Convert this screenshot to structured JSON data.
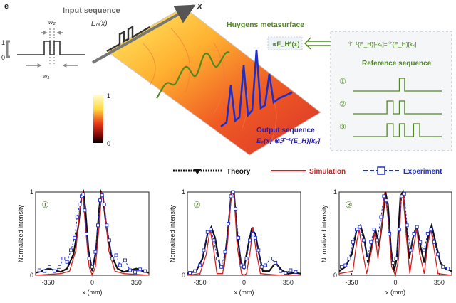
{
  "panel_label": "e",
  "top": {
    "input_sequence_label": "Input sequence",
    "e0x_label": "E₀(x)",
    "axis_x_label": "x",
    "w1_label": "w₁",
    "w2_label": "w₂",
    "level_one": "1",
    "level_zero": "0",
    "huygens_label": "Huygens metasurface",
    "formula_left": "∝E_H*(x)",
    "formula_right": "ℱ⁻¹{E_H}[-kₓ]=ℱ{E_H}[kₓ]",
    "reference_label": "Reference sequence",
    "references": [
      {
        "num": "①",
        "bars": [
          [
            0.52,
            0.58
          ]
        ]
      },
      {
        "num": "②",
        "bars": [
          [
            0.38,
            0.45
          ],
          [
            0.52,
            0.58
          ]
        ]
      },
      {
        "num": "③",
        "bars": [
          [
            0.38,
            0.45
          ],
          [
            0.52,
            0.58
          ],
          [
            0.68,
            0.75
          ]
        ]
      }
    ],
    "colorbar_max": "1",
    "colorbar_min": "0",
    "output_label": "Output sequence",
    "output_formula": "E₀(x) ⊗ℱ⁻¹{E_H}[kₓ]"
  },
  "legend": {
    "theory": "Theory",
    "simulation": "Simulation",
    "experiment": "Experiment"
  },
  "colors": {
    "theory": "#111111",
    "simulation": "#d32020",
    "experiment": "#1d2fc9",
    "green": "#4f8a1c",
    "blue_label": "#2a1fb0"
  },
  "chart_data": [
    {
      "type": "line",
      "badge": "①",
      "ylabel": "Normalized intensity",
      "xlabel": "x (mm)",
      "xlim": [
        -450,
        450
      ],
      "ylim": [
        0,
        1
      ],
      "xticks": [
        "-350",
        "0",
        "350"
      ],
      "yticks": [
        "0",
        "1"
      ],
      "series": [
        {
          "name": "Theory",
          "values": [
            [
              -450,
              0.03
            ],
            [
              -400,
              0.05
            ],
            [
              -350,
              0.08
            ],
            [
              -300,
              0.06
            ],
            [
              -250,
              0.04
            ],
            [
              -200,
              0.08
            ],
            [
              -150,
              0.25
            ],
            [
              -110,
              0.6
            ],
            [
              -85,
              0.95
            ],
            [
              -70,
              1.0
            ],
            [
              -55,
              0.8
            ],
            [
              -30,
              0.3
            ],
            [
              0,
              0.05
            ],
            [
              30,
              0.3
            ],
            [
              55,
              0.8
            ],
            [
              70,
              1.0
            ],
            [
              85,
              0.95
            ],
            [
              110,
              0.6
            ],
            [
              150,
              0.25
            ],
            [
              200,
              0.08
            ],
            [
              250,
              0.04
            ],
            [
              300,
              0.06
            ],
            [
              350,
              0.08
            ],
            [
              400,
              0.05
            ],
            [
              450,
              0.03
            ]
          ]
        },
        {
          "name": "Simulation",
          "values": [
            [
              -450,
              0.0
            ],
            [
              -350,
              0.01
            ],
            [
              -250,
              0.02
            ],
            [
              -180,
              0.05
            ],
            [
              -130,
              0.3
            ],
            [
              -95,
              0.85
            ],
            [
              -75,
              1.0
            ],
            [
              -55,
              0.6
            ],
            [
              -25,
              0.1
            ],
            [
              0,
              0.0
            ],
            [
              25,
              0.1
            ],
            [
              55,
              0.6
            ],
            [
              75,
              1.0
            ],
            [
              95,
              0.85
            ],
            [
              130,
              0.3
            ],
            [
              180,
              0.05
            ],
            [
              250,
              0.02
            ],
            [
              350,
              0.01
            ],
            [
              450,
              0.0
            ]
          ]
        },
        {
          "name": "Experiment",
          "values": [
            [
              -420,
              0.06
            ],
            [
              -380,
              0.05
            ],
            [
              -340,
              0.1
            ],
            [
              -300,
              0.05
            ],
            [
              -260,
              0.1
            ],
            [
              -230,
              0.2
            ],
            [
              -200,
              0.16
            ],
            [
              -170,
              0.3
            ],
            [
              -140,
              0.45
            ],
            [
              -120,
              0.7
            ],
            [
              -100,
              0.85
            ],
            [
              -85,
              0.95
            ],
            [
              -72,
              0.97
            ],
            [
              -60,
              0.78
            ],
            [
              -45,
              0.5
            ],
            [
              -25,
              0.2
            ],
            [
              0,
              0.1
            ],
            [
              25,
              0.28
            ],
            [
              45,
              0.6
            ],
            [
              62,
              0.9
            ],
            [
              78,
              0.96
            ],
            [
              95,
              0.85
            ],
            [
              115,
              0.6
            ],
            [
              135,
              0.42
            ],
            [
              160,
              0.2
            ],
            [
              190,
              0.24
            ],
            [
              220,
              0.12
            ],
            [
              260,
              0.18
            ],
            [
              300,
              0.06
            ],
            [
              340,
              0.04
            ],
            [
              380,
              0.07
            ],
            [
              420,
              0.05
            ]
          ]
        }
      ]
    },
    {
      "type": "line",
      "badge": "②",
      "ylabel": "Normalized intensity",
      "xlabel": "x (mm)",
      "xlim": [
        -450,
        450
      ],
      "ylim": [
        0,
        1
      ],
      "xticks": [
        "-350",
        "0",
        "350"
      ],
      "yticks": [
        "0",
        "1"
      ],
      "series": [
        {
          "name": "Theory",
          "values": [
            [
              -450,
              0.02
            ],
            [
              -380,
              0.05
            ],
            [
              -330,
              0.2
            ],
            [
              -290,
              0.5
            ],
            [
              -260,
              0.58
            ],
            [
              -230,
              0.45
            ],
            [
              -190,
              0.1
            ],
            [
              -160,
              0.1
            ],
            [
              -130,
              0.5
            ],
            [
              -100,
              1.0
            ],
            [
              -80,
              1.0
            ],
            [
              -55,
              0.5
            ],
            [
              -20,
              0.1
            ],
            [
              0,
              0.08
            ],
            [
              25,
              0.3
            ],
            [
              60,
              0.55
            ],
            [
              90,
              0.5
            ],
            [
              120,
              0.25
            ],
            [
              150,
              0.05
            ],
            [
              200,
              0.05
            ],
            [
              250,
              0.15
            ],
            [
              300,
              0.06
            ],
            [
              350,
              0.02
            ],
            [
              400,
              0.03
            ],
            [
              450,
              0.02
            ]
          ]
        },
        {
          "name": "Simulation",
          "values": [
            [
              -450,
              0.0
            ],
            [
              -350,
              0.02
            ],
            [
              -300,
              0.25
            ],
            [
              -270,
              0.55
            ],
            [
              -245,
              0.35
            ],
            [
              -215,
              0.02
            ],
            [
              -170,
              0.02
            ],
            [
              -130,
              0.4
            ],
            [
              -100,
              1.0
            ],
            [
              -80,
              1.0
            ],
            [
              -55,
              0.35
            ],
            [
              -20,
              0.02
            ],
            [
              0,
              0.0
            ],
            [
              20,
              0.02
            ],
            [
              50,
              0.3
            ],
            [
              70,
              0.58
            ],
            [
              95,
              0.3
            ],
            [
              130,
              0.02
            ],
            [
              200,
              0.01
            ],
            [
              300,
              0.0
            ],
            [
              450,
              0.0
            ]
          ]
        },
        {
          "name": "Experiment",
          "values": [
            [
              -430,
              0.03
            ],
            [
              -390,
              0.05
            ],
            [
              -350,
              0.12
            ],
            [
              -320,
              0.3
            ],
            [
              -290,
              0.52
            ],
            [
              -265,
              0.55
            ],
            [
              -240,
              0.42
            ],
            [
              -210,
              0.2
            ],
            [
              -180,
              0.1
            ],
            [
              -150,
              0.28
            ],
            [
              -125,
              0.62
            ],
            [
              -105,
              0.95
            ],
            [
              -88,
              1.0
            ],
            [
              -68,
              0.8
            ],
            [
              -45,
              0.45
            ],
            [
              -20,
              0.12
            ],
            [
              0,
              0.1
            ],
            [
              20,
              0.2
            ],
            [
              45,
              0.42
            ],
            [
              68,
              0.5
            ],
            [
              90,
              0.45
            ],
            [
              115,
              0.3
            ],
            [
              140,
              0.1
            ],
            [
              170,
              0.12
            ],
            [
              210,
              0.2
            ],
            [
              250,
              0.15
            ],
            [
              290,
              0.05
            ],
            [
              330,
              0.03
            ],
            [
              370,
              0.06
            ],
            [
              410,
              0.04
            ]
          ]
        }
      ]
    },
    {
      "type": "line",
      "badge": "③",
      "ylabel": "Normalized intensity",
      "xlabel": "x (mm)",
      "xlim": [
        -450,
        450
      ],
      "ylim": [
        0,
        1
      ],
      "xticks": [
        "-350",
        "0",
        "350"
      ],
      "yticks": [
        "0",
        "1"
      ],
      "series": [
        {
          "name": "Theory",
          "values": [
            [
              -450,
              0.05
            ],
            [
              -400,
              0.1
            ],
            [
              -350,
              0.25
            ],
            [
              -310,
              0.55
            ],
            [
              -280,
              0.6
            ],
            [
              -250,
              0.45
            ],
            [
              -220,
              0.15
            ],
            [
              -190,
              0.35
            ],
            [
              -160,
              0.55
            ],
            [
              -130,
              0.35
            ],
            [
              -100,
              0.7
            ],
            [
              -80,
              1.0
            ],
            [
              -60,
              0.85
            ],
            [
              -35,
              0.3
            ],
            [
              -10,
              0.05
            ],
            [
              10,
              0.2
            ],
            [
              40,
              0.95
            ],
            [
              60,
              1.0
            ],
            [
              85,
              0.6
            ],
            [
              110,
              0.2
            ],
            [
              140,
              0.45
            ],
            [
              170,
              0.6
            ],
            [
              200,
              0.35
            ],
            [
              230,
              0.15
            ],
            [
              260,
              0.45
            ],
            [
              290,
              0.6
            ],
            [
              320,
              0.4
            ],
            [
              360,
              0.15
            ],
            [
              400,
              0.08
            ],
            [
              450,
              0.05
            ]
          ]
        },
        {
          "name": "Simulation",
          "values": [
            [
              -450,
              0.02
            ],
            [
              -340,
              0.05
            ],
            [
              -310,
              0.4
            ],
            [
              -290,
              0.55
            ],
            [
              -265,
              0.3
            ],
            [
              -230,
              0.02
            ],
            [
              -190,
              0.3
            ],
            [
              -165,
              0.52
            ],
            [
              -140,
              0.2
            ],
            [
              -110,
              0.6
            ],
            [
              -85,
              1.0
            ],
            [
              -60,
              0.7
            ],
            [
              -30,
              0.1
            ],
            [
              0,
              0.0
            ],
            [
              25,
              0.2
            ],
            [
              45,
              0.9
            ],
            [
              62,
              1.0
            ],
            [
              85,
              0.5
            ],
            [
              115,
              0.02
            ],
            [
              145,
              0.35
            ],
            [
              170,
              0.55
            ],
            [
              195,
              0.25
            ],
            [
              230,
              0.02
            ],
            [
              260,
              0.38
            ],
            [
              285,
              0.55
            ],
            [
              310,
              0.3
            ],
            [
              340,
              0.02
            ],
            [
              450,
              0.0
            ]
          ]
        },
        {
          "name": "Experiment",
          "values": [
            [
              -430,
              0.1
            ],
            [
              -400,
              0.12
            ],
            [
              -370,
              0.2
            ],
            [
              -340,
              0.4
            ],
            [
              -310,
              0.55
            ],
            [
              -285,
              0.58
            ],
            [
              -255,
              0.42
            ],
            [
              -225,
              0.2
            ],
            [
              -195,
              0.4
            ],
            [
              -170,
              0.55
            ],
            [
              -145,
              0.42
            ],
            [
              -115,
              0.7
            ],
            [
              -92,
              0.95
            ],
            [
              -72,
              0.9
            ],
            [
              -48,
              0.5
            ],
            [
              -20,
              0.15
            ],
            [
              5,
              0.2
            ],
            [
              30,
              0.55
            ],
            [
              50,
              0.95
            ],
            [
              70,
              0.98
            ],
            [
              92,
              0.6
            ],
            [
              120,
              0.3
            ],
            [
              148,
              0.5
            ],
            [
              172,
              0.58
            ],
            [
              198,
              0.4
            ],
            [
              228,
              0.3
            ],
            [
              258,
              0.5
            ],
            [
              285,
              0.55
            ],
            [
              310,
              0.4
            ],
            [
              340,
              0.25
            ],
            [
              380,
              0.1
            ],
            [
              420,
              0.08
            ]
          ]
        }
      ]
    }
  ]
}
